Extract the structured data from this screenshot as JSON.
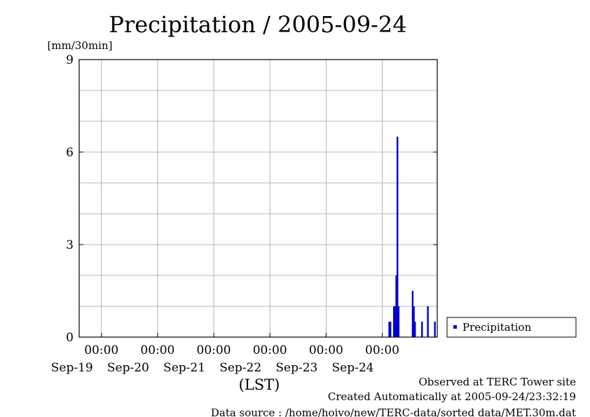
{
  "chart_data": {
    "type": "bar",
    "title": "Precipitation / 2005-09-24",
    "ylabel": "[mm/30min]",
    "xlabel": "(LST)",
    "ylim": [
      0,
      9
    ],
    "y_ticks": [
      "0",
      "3",
      "6",
      "9"
    ],
    "x_range_days": [
      "2005-09-18 14:30",
      "2005-09-24 23:30"
    ],
    "x_tick_time_label": "00:00",
    "x_ticks": [
      {
        "time": "2005-09-19 00:00",
        "time_label": "00:00",
        "date_label": "Sep-19"
      },
      {
        "time": "2005-09-20 00:00",
        "time_label": "00:00",
        "date_label": "Sep-20"
      },
      {
        "time": "2005-09-21 00:00",
        "time_label": "00:00",
        "date_label": "Sep-21"
      },
      {
        "time": "2005-09-22 00:00",
        "time_label": "00:00",
        "date_label": "Sep-22"
      },
      {
        "time": "2005-09-23 00:00",
        "time_label": "00:00",
        "date_label": "Sep-23"
      },
      {
        "time": "2005-09-24 00:00",
        "time_label": "00:00",
        "date_label": "Sep-24"
      }
    ],
    "grid": true,
    "legend_position": "right",
    "series": [
      {
        "name": "Precipitation",
        "color": "#0000cc",
        "points": [
          {
            "time": "2005-09-24 03:00",
            "value": 0.5
          },
          {
            "time": "2005-09-24 03:30",
            "value": 0.5
          },
          {
            "time": "2005-09-24 05:00",
            "value": 1.0
          },
          {
            "time": "2005-09-24 05:30",
            "value": 1.0
          },
          {
            "time": "2005-09-24 06:00",
            "value": 2.0
          },
          {
            "time": "2005-09-24 06:30",
            "value": 6.5
          },
          {
            "time": "2005-09-24 07:00",
            "value": 1.0
          },
          {
            "time": "2005-09-24 13:00",
            "value": 1.5
          },
          {
            "time": "2005-09-24 13:30",
            "value": 1.0
          },
          {
            "time": "2005-09-24 14:00",
            "value": 0.5
          },
          {
            "time": "2005-09-24 17:00",
            "value": 0.5
          },
          {
            "time": "2005-09-24 19:30",
            "value": 1.0
          },
          {
            "time": "2005-09-24 22:30",
            "value": 0.5
          }
        ]
      }
    ]
  },
  "footer": {
    "line1": "Observed at TERC Tower site",
    "line2": "Created Automatically at 2005-09-24/23:32:19",
    "line3": "Data source : /home/hoivo/new/TERC-data/sorted data/MET.30m.dat"
  }
}
